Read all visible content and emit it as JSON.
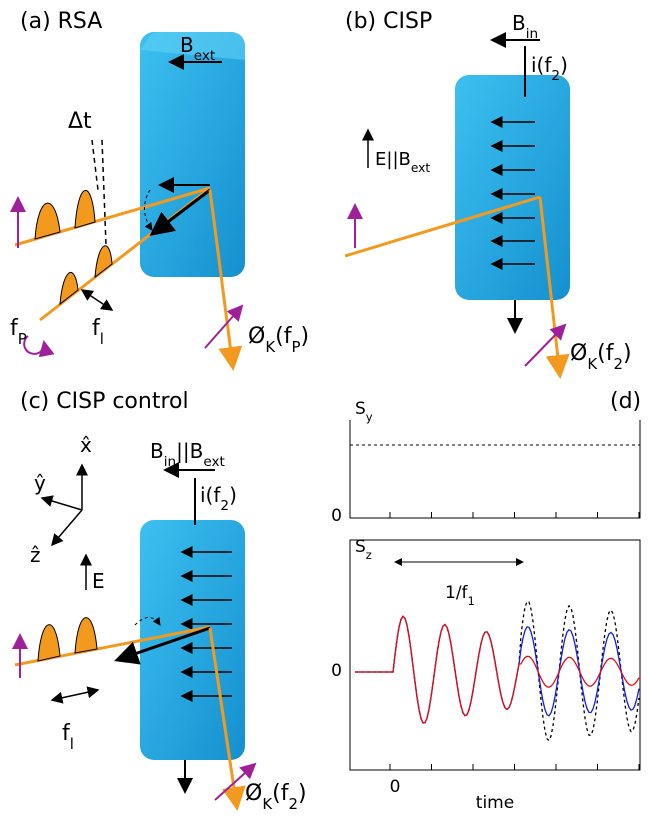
{
  "panel_a": {
    "title": "(a) RSA",
    "field": [
      {
        "text": "B"
      },
      {
        "text": "ext",
        "sub": true
      }
    ],
    "delay": "Δt",
    "pump_freq": [
      {
        "text": "f"
      },
      {
        "text": "P",
        "sub": true
      }
    ],
    "probe_freq": [
      {
        "text": "f"
      },
      {
        "text": "l",
        "sub": true
      }
    ],
    "kerr": [
      {
        "text": "Ø"
      },
      {
        "text": "K",
        "sub": true
      },
      {
        "text": "(f"
      },
      {
        "text": "P",
        "sub": true
      },
      {
        "text": ")"
      }
    ]
  },
  "panel_b": {
    "title": "(b) CISP",
    "field": [
      {
        "text": "B"
      },
      {
        "text": "in",
        "sub": true
      }
    ],
    "current": [
      {
        "text": "i(f"
      },
      {
        "text": "2",
        "sub": true
      },
      {
        "text": ")"
      }
    ],
    "condition": [
      {
        "text": "E||B"
      },
      {
        "text": "ext",
        "sub": true
      }
    ],
    "kerr": [
      {
        "text": "Ø"
      },
      {
        "text": "K",
        "sub": true
      },
      {
        "text": "(f"
      },
      {
        "text": "2",
        "sub": true
      },
      {
        "text": ")"
      }
    ]
  },
  "panel_c": {
    "title": "(c) CISP control",
    "field": [
      {
        "text": "B"
      },
      {
        "text": "in",
        "sub": true
      },
      {
        "text": "||B"
      },
      {
        "text": "ext",
        "sub": true
      }
    ],
    "current": [
      {
        "text": "i(f"
      },
      {
        "text": "2",
        "sub": true
      },
      {
        "text": ")"
      }
    ],
    "axis_x": "x̂",
    "axis_y": "ŷ",
    "axis_z": "ẑ",
    "efield": "E",
    "probe_freq": [
      {
        "text": "f"
      },
      {
        "text": "l",
        "sub": true
      }
    ],
    "kerr": [
      {
        "text": "Ø"
      },
      {
        "text": "K",
        "sub": true
      },
      {
        "text": "(f"
      },
      {
        "text": "2",
        "sub": true
      },
      {
        "text": ")"
      }
    ]
  },
  "panel_d": {
    "title": "(d)",
    "sy_label": [
      {
        "text": "S"
      },
      {
        "text": "y",
        "sub": true
      }
    ],
    "sz_label": [
      {
        "text": "S"
      },
      {
        "text": "z",
        "sub": true
      }
    ],
    "sy_ticks": [
      0
    ],
    "sz_ticks": [
      0
    ],
    "time_ticks": [
      0
    ],
    "period": [
      {
        "text": "1/f"
      },
      {
        "text": "1",
        "sub": true
      }
    ],
    "xlabel": "time"
  }
}
